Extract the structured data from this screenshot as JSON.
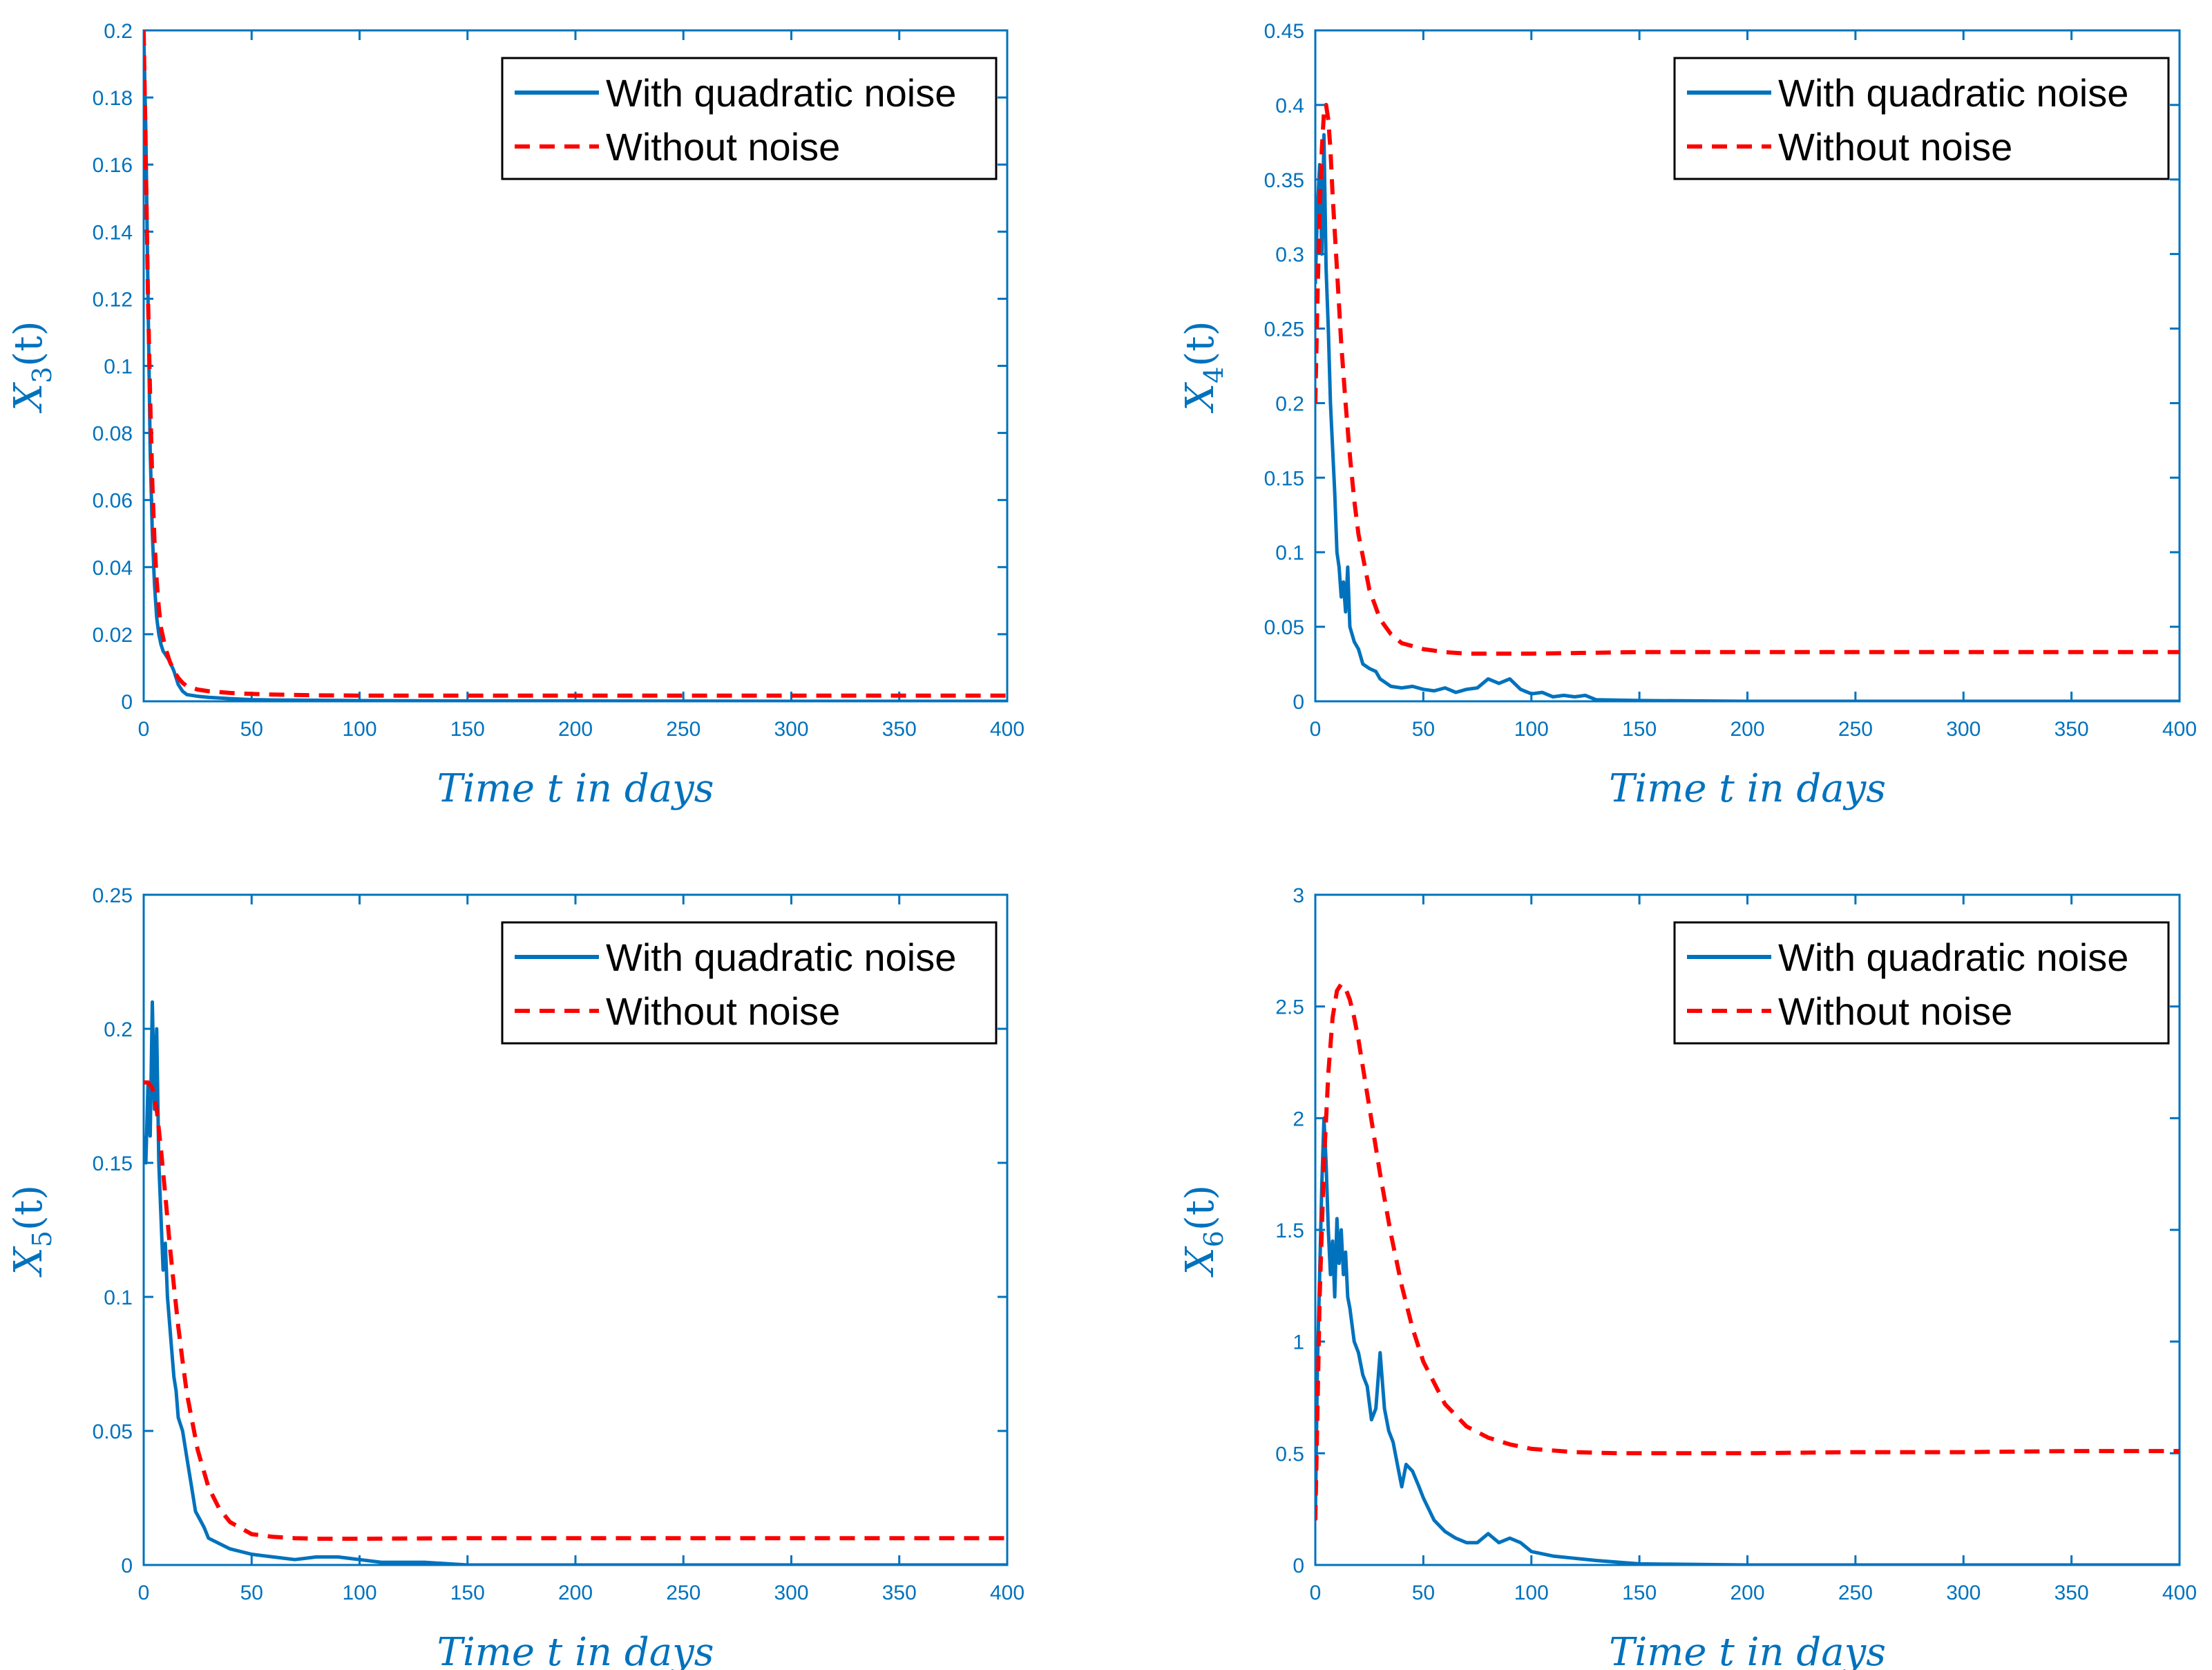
{
  "colors": {
    "axis": "#0072BD",
    "noise": "#0072BD",
    "deterministic": "#FF0000",
    "legend_text": "#000000",
    "background": "#ffffff"
  },
  "legend": {
    "noise": "With quadratic noise",
    "deterministic": "Without noise"
  },
  "chart_data": [
    {
      "type": "line",
      "xlabel": "Time t in days",
      "ylabel": {
        "base": "X",
        "sub": "3",
        "arg": "(t)"
      },
      "xlim": [
        0,
        400
      ],
      "ylim": [
        0,
        0.2
      ],
      "xticks": [
        0,
        50,
        100,
        150,
        200,
        250,
        300,
        350,
        400
      ],
      "yticks": [
        0,
        0.02,
        0.04,
        0.06,
        0.08,
        0.1,
        0.12,
        0.14,
        0.16,
        0.18,
        0.2
      ],
      "ytick_labels": [
        "0",
        "0.02",
        "0.04",
        "0.06",
        "0.08",
        "0.1",
        "0.12",
        "0.14",
        "0.16",
        "0.18",
        "0.2"
      ],
      "legend_position": "top-right",
      "series": [
        {
          "name": "With quadratic noise",
          "style": "solid",
          "x": [
            0,
            1,
            2,
            3,
            4,
            5,
            6,
            7,
            8,
            9,
            10,
            12,
            14,
            16,
            18,
            20,
            25,
            30,
            40,
            50,
            60,
            80,
            100,
            150,
            200,
            300,
            400
          ],
          "y": [
            0.2,
            0.17,
            0.12,
            0.075,
            0.05,
            0.035,
            0.025,
            0.02,
            0.017,
            0.015,
            0.014,
            0.012,
            0.009,
            0.005,
            0.003,
            0.002,
            0.0015,
            0.0012,
            0.0008,
            0.0005,
            0.0004,
            0.0003,
            0.0002,
            0.0001,
            0.0001,
            0.0,
            0.0
          ]
        },
        {
          "name": "Without noise",
          "style": "dashed",
          "x": [
            0,
            1,
            2,
            3,
            4,
            5,
            6,
            7,
            8,
            10,
            12,
            14,
            16,
            18,
            20,
            25,
            30,
            40,
            50,
            60,
            80,
            100,
            150,
            200,
            300,
            400
          ],
          "y": [
            0.2,
            0.16,
            0.12,
            0.09,
            0.065,
            0.048,
            0.036,
            0.028,
            0.022,
            0.016,
            0.012,
            0.009,
            0.007,
            0.0055,
            0.0045,
            0.0035,
            0.003,
            0.0025,
            0.0022,
            0.002,
            0.0018,
            0.0017,
            0.0017,
            0.0017,
            0.0017,
            0.0017
          ]
        }
      ]
    },
    {
      "type": "line",
      "xlabel": "Time t in days",
      "ylabel": {
        "base": "X",
        "sub": "4",
        "arg": "(t)"
      },
      "xlim": [
        0,
        400
      ],
      "ylim": [
        0,
        0.45
      ],
      "xticks": [
        0,
        50,
        100,
        150,
        200,
        250,
        300,
        350,
        400
      ],
      "yticks": [
        0,
        0.05,
        0.1,
        0.15,
        0.2,
        0.25,
        0.3,
        0.35,
        0.4,
        0.45
      ],
      "ytick_labels": [
        "0",
        "0.05",
        "0.1",
        "0.15",
        "0.2",
        "0.25",
        "0.3",
        "0.35",
        "0.4",
        "0.45"
      ],
      "legend_position": "top-right",
      "series": [
        {
          "name": "With quadratic noise",
          "style": "solid",
          "x": [
            0,
            1,
            2,
            3,
            4,
            5,
            6,
            7,
            8,
            9,
            10,
            11,
            12,
            13,
            14,
            15,
            16,
            18,
            20,
            22,
            25,
            28,
            30,
            35,
            40,
            45,
            50,
            55,
            60,
            65,
            70,
            75,
            80,
            85,
            90,
            95,
            100,
            105,
            110,
            115,
            120,
            125,
            130,
            150,
            200,
            300,
            400
          ],
          "y": [
            0.28,
            0.33,
            0.36,
            0.3,
            0.38,
            0.29,
            0.25,
            0.2,
            0.17,
            0.14,
            0.1,
            0.09,
            0.07,
            0.08,
            0.06,
            0.09,
            0.05,
            0.04,
            0.035,
            0.025,
            0.022,
            0.02,
            0.015,
            0.01,
            0.009,
            0.01,
            0.008,
            0.007,
            0.009,
            0.006,
            0.008,
            0.009,
            0.015,
            0.012,
            0.015,
            0.008,
            0.005,
            0.006,
            0.003,
            0.004,
            0.003,
            0.004,
            0.001,
            0.0005,
            0.0,
            0.0,
            0.0
          ]
        },
        {
          "name": "Without noise",
          "style": "dashed",
          "x": [
            0,
            1,
            2,
            3,
            4,
            5,
            6,
            7,
            8,
            10,
            12,
            14,
            16,
            18,
            20,
            25,
            30,
            35,
            40,
            50,
            60,
            70,
            80,
            100,
            150,
            200,
            300,
            400
          ],
          "y": [
            0.2,
            0.27,
            0.33,
            0.37,
            0.395,
            0.4,
            0.39,
            0.37,
            0.34,
            0.29,
            0.24,
            0.2,
            0.165,
            0.135,
            0.112,
            0.075,
            0.055,
            0.045,
            0.039,
            0.035,
            0.033,
            0.032,
            0.032,
            0.032,
            0.033,
            0.033,
            0.033,
            0.033
          ]
        }
      ]
    },
    {
      "type": "line",
      "xlabel": "Time t in days",
      "ylabel": {
        "base": "X",
        "sub": "5",
        "arg": "(t)"
      },
      "xlim": [
        0,
        400
      ],
      "ylim": [
        0,
        0.25
      ],
      "xticks": [
        0,
        50,
        100,
        150,
        200,
        250,
        300,
        350,
        400
      ],
      "yticks": [
        0,
        0.05,
        0.1,
        0.15,
        0.2,
        0.25
      ],
      "ytick_labels": [
        "0",
        "0.05",
        "0.1",
        "0.15",
        "0.2",
        "0.25"
      ],
      "legend_position": "top-right",
      "series": [
        {
          "name": "With quadratic noise",
          "style": "solid",
          "x": [
            0,
            1,
            2,
            3,
            4,
            5,
            6,
            7,
            8,
            9,
            10,
            11,
            12,
            13,
            14,
            15,
            16,
            18,
            20,
            22,
            24,
            26,
            28,
            30,
            35,
            40,
            50,
            60,
            70,
            80,
            90,
            100,
            110,
            130,
            150,
            200,
            300,
            400
          ],
          "y": [
            0.16,
            0.15,
            0.18,
            0.16,
            0.21,
            0.17,
            0.2,
            0.15,
            0.13,
            0.11,
            0.12,
            0.1,
            0.09,
            0.08,
            0.07,
            0.065,
            0.055,
            0.05,
            0.04,
            0.03,
            0.02,
            0.017,
            0.014,
            0.01,
            0.008,
            0.006,
            0.004,
            0.003,
            0.002,
            0.003,
            0.003,
            0.002,
            0.001,
            0.001,
            0.0,
            0.0,
            0.0,
            0.0
          ]
        },
        {
          "name": "Without noise",
          "style": "dashed",
          "x": [
            0,
            2,
            4,
            6,
            8,
            10,
            12,
            14,
            16,
            18,
            20,
            25,
            30,
            35,
            40,
            50,
            60,
            70,
            80,
            100,
            150,
            200,
            300,
            400
          ],
          "y": [
            0.18,
            0.18,
            0.178,
            0.17,
            0.155,
            0.138,
            0.12,
            0.104,
            0.089,
            0.076,
            0.064,
            0.043,
            0.029,
            0.021,
            0.016,
            0.0115,
            0.0105,
            0.01,
            0.0098,
            0.0098,
            0.01,
            0.01,
            0.01,
            0.01
          ]
        }
      ]
    },
    {
      "type": "line",
      "xlabel": "Time t in days",
      "ylabel": {
        "base": "X",
        "sub": "6",
        "arg": "(t)"
      },
      "xlim": [
        0,
        400
      ],
      "ylim": [
        0,
        3
      ],
      "xticks": [
        0,
        50,
        100,
        150,
        200,
        250,
        300,
        350,
        400
      ],
      "yticks": [
        0,
        0.5,
        1,
        1.5,
        2,
        2.5,
        3
      ],
      "ytick_labels": [
        "0",
        "0.5",
        "1",
        "1.5",
        "2",
        "2.5",
        "3"
      ],
      "legend_position": "top-right",
      "series": [
        {
          "name": "With quadratic noise",
          "style": "solid",
          "x": [
            0,
            1,
            2,
            3,
            4,
            5,
            6,
            7,
            8,
            9,
            10,
            11,
            12,
            13,
            14,
            15,
            16,
            18,
            20,
            22,
            24,
            26,
            28,
            30,
            32,
            34,
            36,
            38,
            40,
            42,
            45,
            48,
            50,
            55,
            60,
            65,
            70,
            75,
            80,
            85,
            90,
            95,
            100,
            110,
            120,
            130,
            150,
            200,
            300,
            400
          ],
          "y": [
            0.2,
            0.9,
            1.3,
            1.7,
            2.0,
            1.8,
            1.5,
            1.3,
            1.45,
            1.2,
            1.55,
            1.35,
            1.5,
            1.3,
            1.4,
            1.2,
            1.15,
            1.0,
            0.95,
            0.85,
            0.8,
            0.65,
            0.7,
            0.95,
            0.7,
            0.6,
            0.55,
            0.45,
            0.35,
            0.45,
            0.42,
            0.35,
            0.3,
            0.2,
            0.15,
            0.12,
            0.1,
            0.1,
            0.14,
            0.1,
            0.12,
            0.1,
            0.06,
            0.04,
            0.03,
            0.02,
            0.005,
            0.0,
            0.0,
            0.0
          ]
        },
        {
          "name": "Without noise",
          "style": "dashed",
          "x": [
            0,
            2,
            4,
            6,
            8,
            10,
            12,
            14,
            16,
            18,
            20,
            25,
            30,
            35,
            40,
            45,
            50,
            60,
            70,
            80,
            90,
            100,
            120,
            140,
            160,
            200,
            250,
            300,
            350,
            400
          ],
          "y": [
            0.2,
            1.2,
            1.8,
            2.2,
            2.45,
            2.57,
            2.6,
            2.58,
            2.53,
            2.45,
            2.35,
            2.05,
            1.75,
            1.48,
            1.25,
            1.06,
            0.91,
            0.72,
            0.62,
            0.57,
            0.54,
            0.52,
            0.505,
            0.5,
            0.5,
            0.5,
            0.505,
            0.505,
            0.51,
            0.51
          ]
        }
      ]
    }
  ]
}
